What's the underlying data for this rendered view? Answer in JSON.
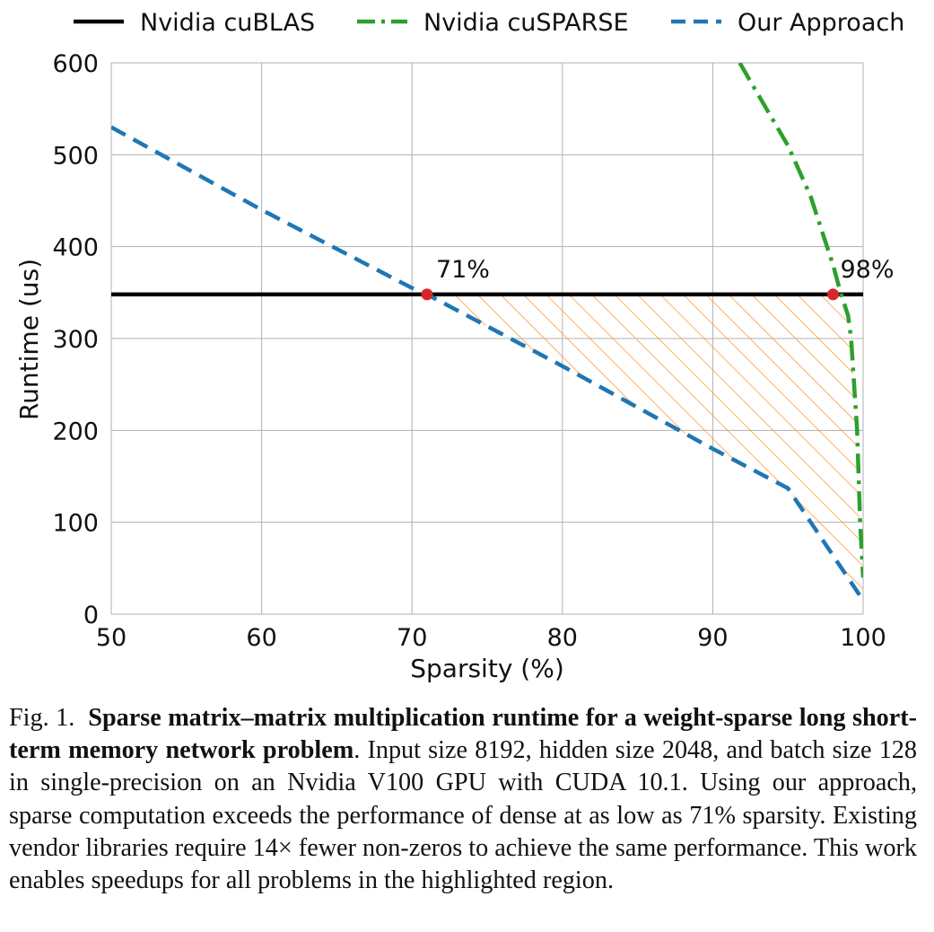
{
  "chart_data": {
    "type": "line",
    "title": "",
    "xlabel": "Sparsity (%)",
    "ylabel": "Runtime (us)",
    "xlim": [
      50,
      100
    ],
    "ylim": [
      0,
      600
    ],
    "xticks": [
      50,
      60,
      70,
      80,
      90,
      100
    ],
    "yticks": [
      0,
      100,
      200,
      300,
      400,
      500,
      600
    ],
    "grid": true,
    "legend_position": "top (above plot, horizontal)",
    "series": [
      {
        "name": "Nvidia cuBLAS",
        "color": "#000000",
        "style": "solid",
        "x": [
          50,
          100
        ],
        "y": [
          348,
          348
        ]
      },
      {
        "name": "Nvidia cuSPARSE",
        "color": "#2ca02c",
        "style": "dashdot",
        "x": [
          91.8,
          92.5,
          95,
          96.5,
          97.5,
          98,
          98.5,
          99,
          99.2,
          99.6,
          99.8,
          100
        ],
        "y": [
          600,
          580,
          510,
          455,
          405,
          380,
          350,
          325,
          300,
          200,
          100,
          40
        ]
      },
      {
        "name": "Our Approach",
        "color": "#1f77b4",
        "style": "dashed",
        "x": [
          50,
          60,
          70,
          71,
          80,
          90,
          95,
          100
        ],
        "y": [
          530,
          440,
          355,
          348,
          270,
          180,
          137,
          15
        ]
      }
    ],
    "highlight_region": {
      "description": "hatched region between Our Approach and the cuSPARSE/cuBLAS curves",
      "color": "#ff7f0e",
      "x_range": [
        71,
        100
      ]
    },
    "annotations": [
      {
        "text": "71%",
        "x": 71,
        "y": 348,
        "color": "#d62728"
      },
      {
        "text": "98%",
        "x": 98,
        "y": 348,
        "color": "#d62728"
      }
    ]
  },
  "caption": {
    "prefix": "Fig. 1.",
    "bold": "Sparse matrix–matrix multiplication runtime for a weight-sparse long short-term memory network problem",
    "text": ". Input size 8192, hidden size 2048, and batch size 128 in single-precision on an Nvidia V100 GPU with CUDA 10.1. Using our approach, sparse computation exceeds the performance of dense at as low as 71% sparsity. Existing vendor libraries require 14× fewer non-zeros to achieve the same performance. This work enables speedups for all problems in the highlighted region."
  }
}
